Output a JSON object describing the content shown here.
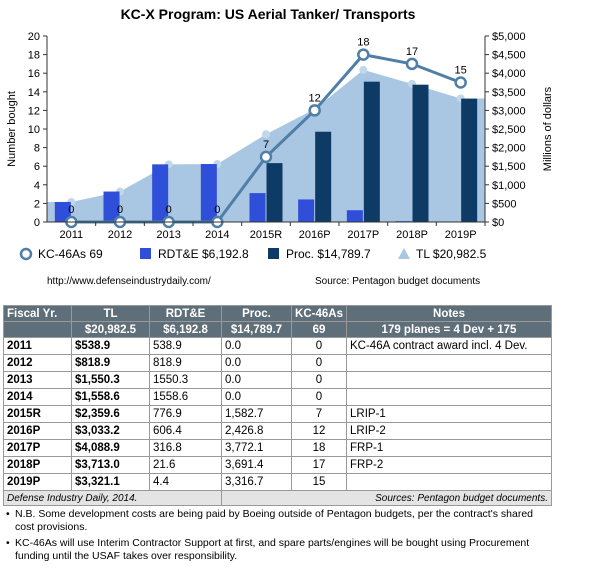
{
  "chart_data": {
    "type": "bar",
    "title": "KC-X Program: US Aerial Tanker/ Transports",
    "ylabel_left": "Number bought",
    "ylabel_right": "Millions of dollars",
    "categories": [
      "2011",
      "2012",
      "2013",
      "2014",
      "2015R",
      "2016P",
      "2017P",
      "2018P",
      "2019P"
    ],
    "left_axis": {
      "min": 0,
      "max": 20,
      "ticks": [
        "0",
        "2",
        "4",
        "6",
        "8",
        "10",
        "12",
        "14",
        "16",
        "18",
        "20"
      ]
    },
    "right_axis": {
      "min": 0,
      "max": 5000,
      "ticks": [
        "$0",
        "$500",
        "$1,000",
        "$1,500",
        "$2,000",
        "$2,500",
        "$3,000",
        "$3,500",
        "$4,000",
        "$4,500",
        "$5,000"
      ]
    },
    "series": [
      {
        "name": "KC-46As 69",
        "type": "line",
        "axis": "left",
        "color": "#4f7fa6",
        "values": [
          0,
          0,
          0,
          0,
          7,
          12,
          18,
          17,
          15
        ],
        "labels": [
          "0",
          "0",
          "0",
          "0",
          "7",
          "12",
          "18",
          "17",
          "15"
        ]
      },
      {
        "name": "RDT&E $6,192.8",
        "type": "bar",
        "axis": "right",
        "color": "#2f4fd8",
        "values": [
          538.9,
          818.9,
          1550.3,
          1558.6,
          776.9,
          606.4,
          316.8,
          21.6,
          4.4
        ]
      },
      {
        "name": "Proc. $14,789.7",
        "type": "bar",
        "axis": "right",
        "color": "#0e3a66",
        "values": [
          0,
          0,
          0,
          0,
          1582.7,
          2426.8,
          3772.1,
          3691.4,
          3316.7
        ]
      },
      {
        "name": "TL $20,982.5",
        "type": "area",
        "axis": "right",
        "color": "#a9c6e2",
        "values": [
          538.9,
          818.9,
          1550.3,
          1558.6,
          2359.6,
          3033.2,
          4088.9,
          3713.0,
          3321.1
        ]
      }
    ],
    "grid": false,
    "legend_position": "bottom"
  },
  "source_left": "http://www.defenseindustrydaily.com/",
  "source_right": "Source: Pentagon budget documents",
  "table": {
    "header_row1": [
      "Fiscal Yr.",
      "TL",
      "RDT&E",
      "Proc.",
      "KC-46As",
      "Notes"
    ],
    "header_row2": [
      "",
      "$20,982.5",
      "$6,192.8",
      "$14,789.7",
      "69",
      "179 planes = 4 Dev + 175"
    ],
    "rows": [
      [
        "2011",
        "$538.9",
        "538.9",
        "0.0",
        "0",
        "KC-46A contract award incl. 4 Dev."
      ],
      [
        "2012",
        "$818.9",
        "818.9",
        "0.0",
        "0",
        ""
      ],
      [
        "2013",
        "$1,550.3",
        "1550.3",
        "0.0",
        "0",
        ""
      ],
      [
        "2014",
        "$1,558.6",
        "1558.6",
        "0.0",
        "0",
        ""
      ],
      [
        "2015R",
        "$2,359.6",
        "776.9",
        "1,582.7",
        "7",
        "LRIP-1"
      ],
      [
        "2016P",
        "$3,033.2",
        "606.4",
        "2,426.8",
        "12",
        "LRIP-2"
      ],
      [
        "2017P",
        "$4,088.9",
        "316.8",
        "3,772.1",
        "18",
        "FRP-1"
      ],
      [
        "2018P",
        "$3,713.0",
        "21.6",
        "3,691.4",
        "17",
        "FRP-2"
      ],
      [
        "2019P",
        "$3,321.1",
        "4.4",
        "3,316.7",
        "15",
        ""
      ]
    ],
    "footer_left": "Defense Industry Daily, 2014.",
    "footer_right": "Sources: Pentagon budget documents."
  },
  "notes": [
    {
      "bullet": "•",
      "text": "N.B. Some development costs are being paid by Boeing outside of Pentagon budgets, per the contract's shared cost provisions."
    },
    {
      "bullet": "•",
      "text": "KC-46As will use Interim Contractor Support at first, and spare parts/engines will be bought using Procurement funding until the USAF takes over responsibility."
    }
  ]
}
